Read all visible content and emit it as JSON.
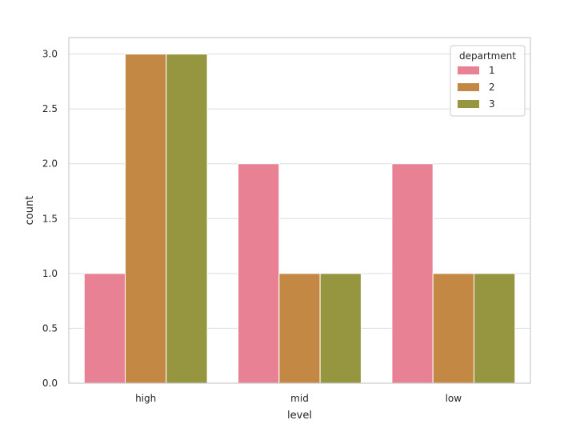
{
  "chart_data": {
    "type": "bar",
    "xlabel": "level",
    "ylabel": "count",
    "categories": [
      "high",
      "mid",
      "low"
    ],
    "ylim": [
      0,
      3.15
    ],
    "yticks": [
      "0.0",
      "0.5",
      "1.0",
      "1.5",
      "2.0",
      "2.5",
      "3.0"
    ],
    "grid": "horizontal",
    "legend": {
      "title": "department",
      "placement": "top-right"
    },
    "series": [
      {
        "name": "1",
        "color": "#e88193",
        "values": [
          1,
          2,
          2
        ]
      },
      {
        "name": "2",
        "color": "#c38944",
        "values": [
          3,
          1,
          1
        ]
      },
      {
        "name": "3",
        "color": "#979640",
        "values": [
          3,
          1,
          1
        ]
      }
    ]
  }
}
